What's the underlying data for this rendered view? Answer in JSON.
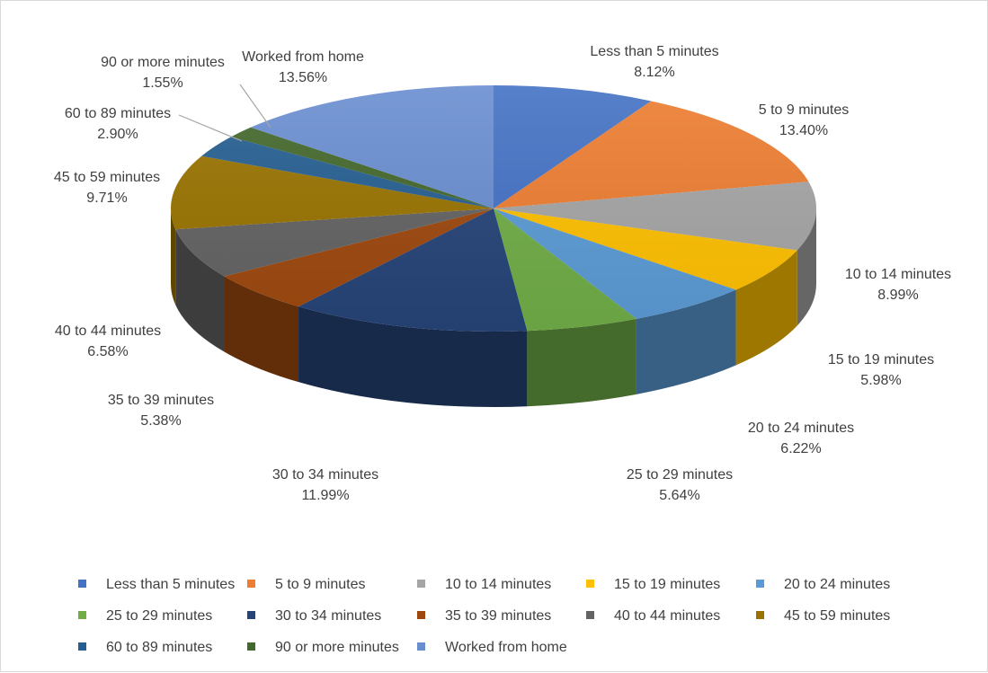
{
  "chart_data": {
    "type": "pie",
    "style": "3d-exploded-none",
    "title": "",
    "legend_position": "bottom",
    "slices": [
      {
        "label": "Less than 5 minutes",
        "value": 8.12,
        "display": "8.12%",
        "color": "#4472C4"
      },
      {
        "label": "5 to 9 minutes",
        "value": 13.4,
        "display": "13.40%",
        "color": "#ED7D31"
      },
      {
        "label": "10 to 14 minutes",
        "value": 8.99,
        "display": "8.99%",
        "color": "#A5A5A5"
      },
      {
        "label": "15 to 19 minutes",
        "value": 5.98,
        "display": "5.98%",
        "color": "#FFC000"
      },
      {
        "label": "20 to 24 minutes",
        "value": 6.22,
        "display": "6.22%",
        "color": "#5B9BD5"
      },
      {
        "label": "25 to 29 minutes",
        "value": 5.64,
        "display": "5.64%",
        "color": "#70AD47"
      },
      {
        "label": "30 to 34 minutes",
        "value": 11.99,
        "display": "11.99%",
        "color": "#264478"
      },
      {
        "label": "35 to 39 minutes",
        "value": 5.38,
        "display": "5.38%",
        "color": "#9E480E"
      },
      {
        "label": "40 to 44 minutes",
        "value": 6.58,
        "display": "6.58%",
        "color": "#636363"
      },
      {
        "label": "45 to 59 minutes",
        "value": 9.71,
        "display": "9.71%",
        "color": "#997300"
      },
      {
        "label": "60 to 89 minutes",
        "value": 2.9,
        "display": "2.90%",
        "color": "#255E91"
      },
      {
        "label": "90 or more minutes",
        "value": 1.55,
        "display": "1.55%",
        "color": "#43682B"
      },
      {
        "label": "Worked from home",
        "value": 13.56,
        "display": "13.56%",
        "color": "#698ED0"
      }
    ]
  }
}
